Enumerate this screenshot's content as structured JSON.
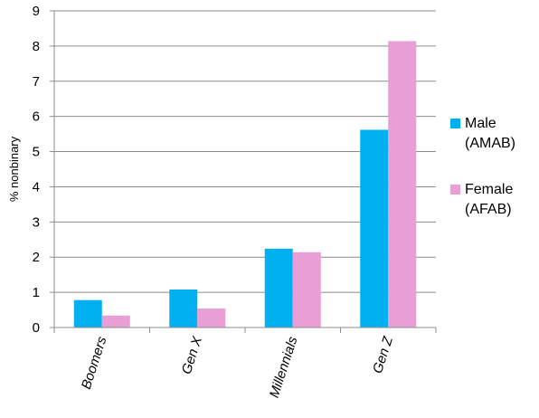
{
  "chart_data": {
    "type": "bar",
    "title": "",
    "xlabel": "",
    "ylabel": "% nonbinary",
    "categories": [
      "Boomers",
      "Gen X",
      "Millennials",
      "Gen Z"
    ],
    "series": [
      {
        "name": "Male (AMAB)",
        "name_lines": [
          "Male",
          "(AMAB)"
        ],
        "color": "#00b0f0",
        "values": [
          0.78,
          1.08,
          2.24,
          5.62
        ]
      },
      {
        "name": "Female (AFAB)",
        "name_lines": [
          "Female",
          "(AFAB)"
        ],
        "color": "#e99fd6",
        "values": [
          0.34,
          0.54,
          2.14,
          8.14
        ]
      }
    ],
    "ylim": [
      0,
      9
    ],
    "yticks": [
      0,
      1,
      2,
      3,
      4,
      5,
      6,
      7,
      8,
      9
    ],
    "grid": true,
    "legend": "right",
    "category_label_style": "italic, rotated"
  }
}
